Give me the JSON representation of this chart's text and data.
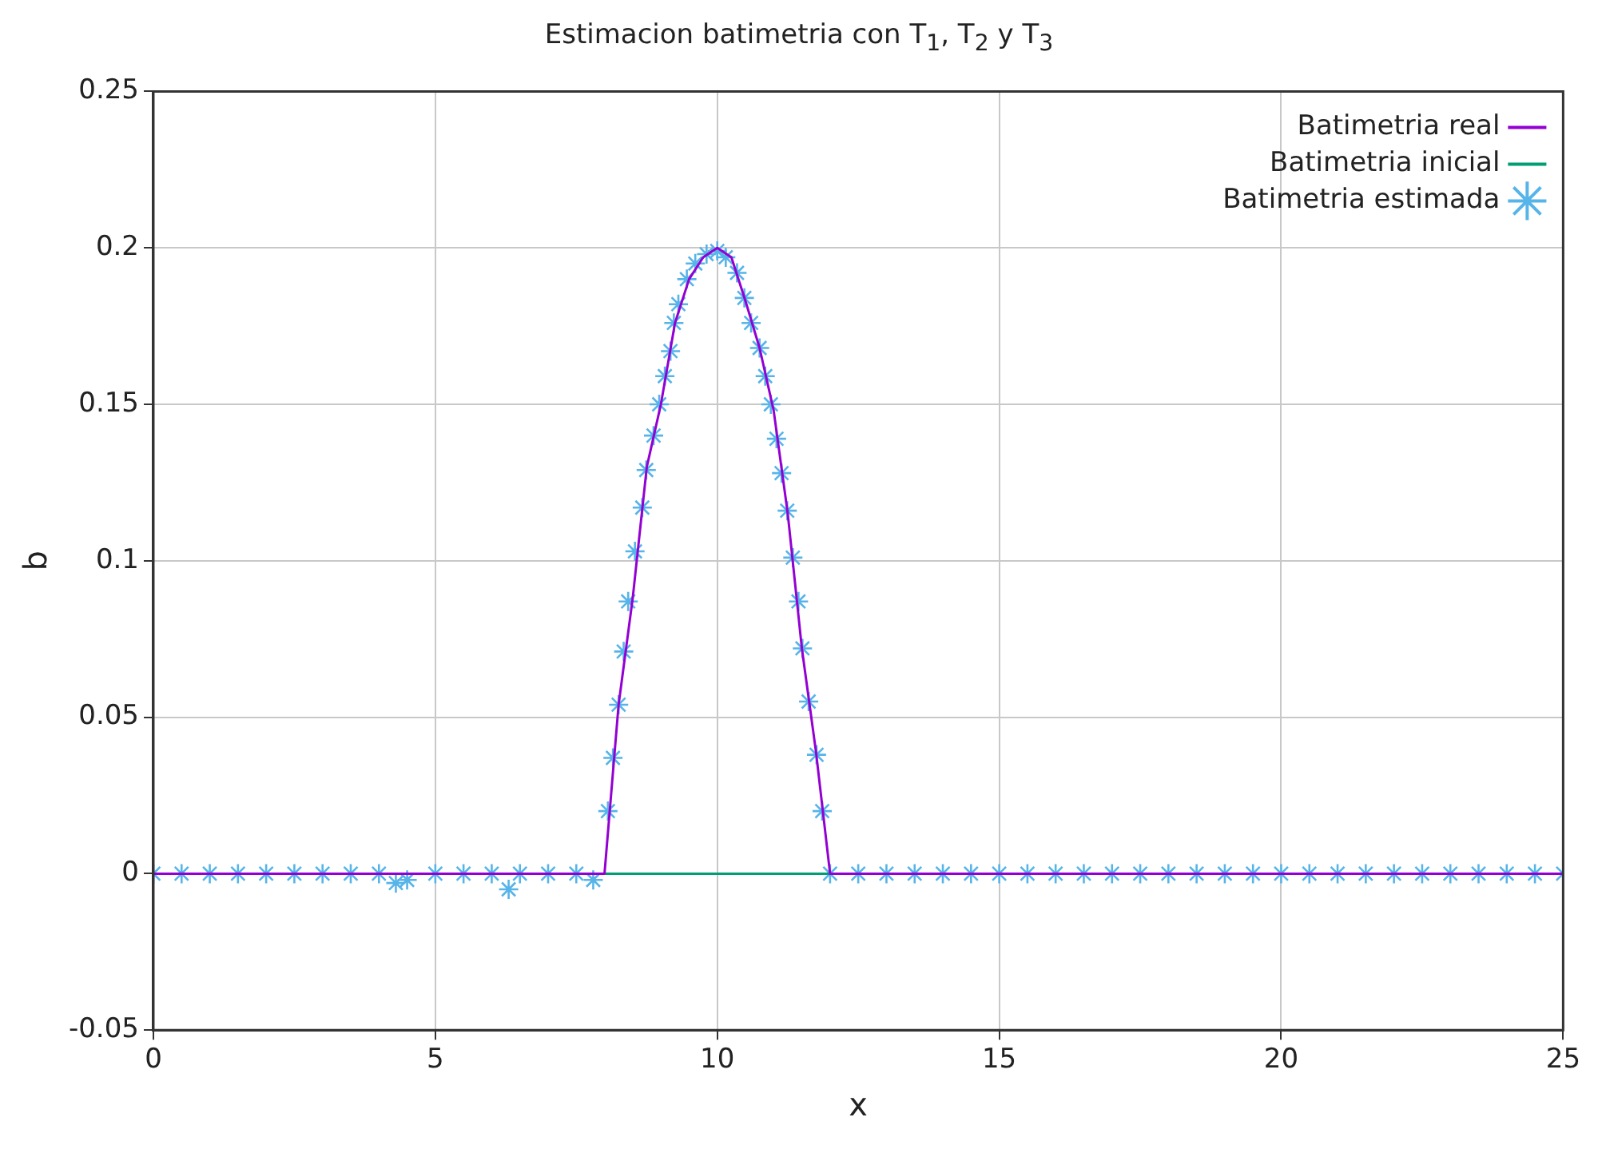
{
  "chart_data": {
    "type": "line",
    "title": "Estimacion batimetria con T$_{1}$, T$_{2}$ y T$_{3}$",
    "xlabel": "x",
    "ylabel": "b",
    "xlim": [
      0,
      25
    ],
    "xticks": [
      0,
      5,
      10,
      15,
      20,
      25
    ],
    "ylim": [
      -0.05,
      0.25
    ],
    "yticks": [
      -0.05,
      0,
      0.05,
      0.1,
      0.15,
      0.2,
      0.25
    ],
    "grid": true,
    "legend": "top right",
    "series": [
      {
        "name": "Batimetria real",
        "color": "#9400d3",
        "x": [
          0,
          8,
          8.25,
          8.5,
          8.75,
          9,
          9.25,
          9.5,
          9.75,
          10,
          10.25,
          10.5,
          10.75,
          11,
          11.25,
          11.5,
          11.75,
          12,
          25
        ],
        "values": [
          0,
          0,
          0.054,
          0.088,
          0.13,
          0.15,
          0.176,
          0.19,
          0.197,
          0.2,
          0.197,
          0.183,
          0.168,
          0.148,
          0.115,
          0.072,
          0.039,
          0,
          0
        ]
      },
      {
        "name": "Batimetria inicial",
        "color": "#009e73",
        "x": [
          8,
          12
        ],
        "values": [
          0,
          0
        ]
      },
      {
        "name": "Batimetria estimada",
        "type": "scatter",
        "marker": "cross",
        "color": "#56b4e9",
        "x": [
          0,
          0.5,
          1,
          1.5,
          2,
          2.5,
          3,
          3.5,
          4,
          4.3,
          4.5,
          5,
          5.5,
          6,
          6.3,
          6.5,
          7,
          7.5,
          7.8,
          8.06,
          8.15,
          8.25,
          8.34,
          8.42,
          8.54,
          8.67,
          8.74,
          8.87,
          8.97,
          9.07,
          9.17,
          9.23,
          9.31,
          9.46,
          9.61,
          9.81,
          10,
          10.15,
          10.35,
          10.48,
          10.6,
          10.75,
          10.85,
          10.95,
          11.05,
          11.14,
          11.24,
          11.34,
          11.44,
          11.51,
          11.62,
          11.76,
          11.86,
          12,
          12.5,
          13,
          13.5,
          14,
          14.5,
          15,
          15.5,
          16,
          16.5,
          17,
          17.5,
          18,
          18.5,
          19,
          19.5,
          20,
          20.5,
          21,
          21.5,
          22,
          22.5,
          23,
          23.5,
          24,
          24.5,
          25
        ],
        "values": [
          0,
          0,
          0,
          0,
          0,
          0,
          0,
          0,
          0,
          -0.003,
          -0.002,
          0,
          0,
          0,
          -0.005,
          0,
          0,
          0,
          -0.002,
          0.02,
          0.037,
          0.054,
          0.071,
          0.087,
          0.103,
          0.117,
          0.129,
          0.14,
          0.15,
          0.159,
          0.167,
          0.176,
          0.182,
          0.19,
          0.195,
          0.198,
          0.199,
          0.197,
          0.192,
          0.184,
          0.176,
          0.168,
          0.159,
          0.15,
          0.139,
          0.128,
          0.116,
          0.101,
          0.087,
          0.072,
          0.055,
          0.038,
          0.02,
          0,
          0,
          0,
          0,
          0,
          0,
          0,
          0,
          0,
          0,
          0,
          0,
          0,
          0,
          0,
          0,
          0,
          0,
          0,
          0,
          0,
          0,
          0,
          0,
          0,
          0,
          0
        ]
      }
    ]
  }
}
